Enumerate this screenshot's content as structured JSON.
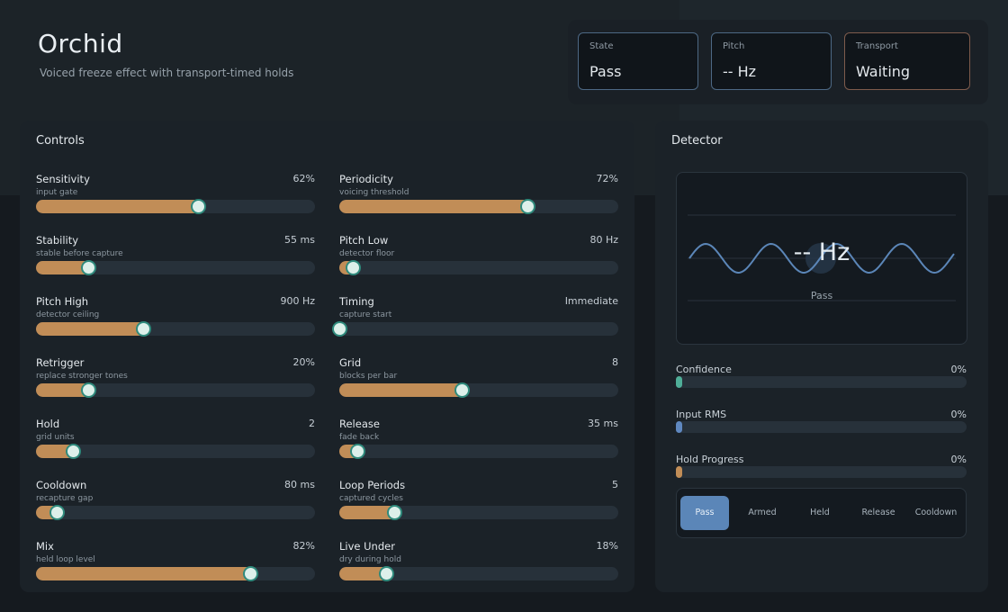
{
  "app": {
    "title": "Orchid",
    "subtitle": "Voiced freeze effect with transport-timed holds"
  },
  "status": {
    "state": {
      "label": "State",
      "value": "Pass"
    },
    "pitch": {
      "label": "Pitch",
      "value": "-- Hz"
    },
    "transport": {
      "label": "Transport",
      "value": "Waiting"
    }
  },
  "controls": {
    "title": "Controls",
    "items": [
      {
        "name": "Sensitivity",
        "hint": "input gate",
        "value": "62%",
        "level": 0.62
      },
      {
        "name": "Periodicity",
        "hint": "voicing threshold",
        "value": "72%",
        "level": 0.72
      },
      {
        "name": "Stability",
        "hint": "stable before capture",
        "value": "55 ms",
        "level": 0.2
      },
      {
        "name": "Pitch Low",
        "hint": "detector floor",
        "value": "80 Hz",
        "level": 0.05
      },
      {
        "name": "Pitch High",
        "hint": "detector ceiling",
        "value": "900 Hz",
        "level": 0.41
      },
      {
        "name": "Timing",
        "hint": "capture start",
        "value": "Immediate",
        "level": 0.0
      },
      {
        "name": "Retrigger",
        "hint": "replace stronger tones",
        "value": "20%",
        "level": 0.2
      },
      {
        "name": "Grid",
        "hint": "blocks per bar",
        "value": "8",
        "level": 0.47
      },
      {
        "name": "Hold",
        "hint": "grid units",
        "value": "2",
        "level": 0.14
      },
      {
        "name": "Release",
        "hint": "fade back",
        "value": "35 ms",
        "level": 0.07
      },
      {
        "name": "Cooldown",
        "hint": "recapture gap",
        "value": "80 ms",
        "level": 0.08
      },
      {
        "name": "Loop Periods",
        "hint": "captured cycles",
        "value": "5",
        "level": 0.21
      },
      {
        "name": "Mix",
        "hint": "held loop level",
        "value": "82%",
        "level": 0.82
      },
      {
        "name": "Live Under",
        "hint": "dry during hold",
        "value": "18%",
        "level": 0.18
      }
    ]
  },
  "detector": {
    "title": "Detector",
    "scope_pitch": "-- Hz",
    "scope_state": "Pass",
    "meters": [
      {
        "label": "Confidence",
        "value": "0%",
        "color": "#4fae98"
      },
      {
        "label": "Input RMS",
        "value": "0%",
        "color": "#5f88c0"
      },
      {
        "label": "Hold Progress",
        "value": "0%",
        "color": "#c18d57"
      }
    ],
    "stages": [
      "Pass",
      "Armed",
      "Held",
      "Release",
      "Cooldown"
    ],
    "active_stage": "Pass"
  },
  "colors": {
    "accent_fill": "#c18d57",
    "thumb_ring": "#2f8a7c",
    "wave": "#5b86b8",
    "stage_active": "#5b86b8"
  }
}
